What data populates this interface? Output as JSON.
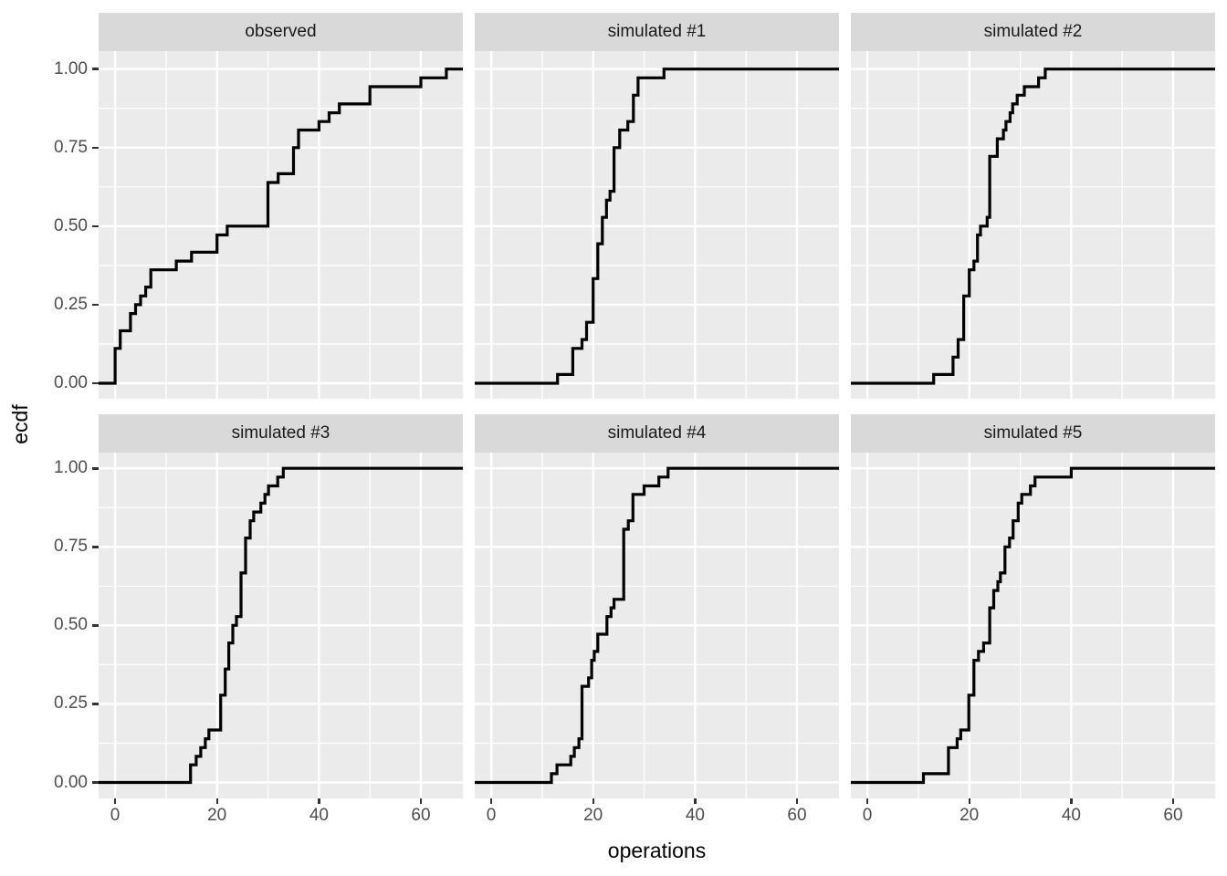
{
  "figure": {
    "background": "#ffffff",
    "colors": {
      "panel_background": "#ebebeb",
      "strip_background": "#d9d9d9",
      "grid_major": "#ffffff",
      "grid_minor": "#ffffff",
      "step_line": "#000000",
      "tick_mark": "#333333",
      "tick_text": "#4d4d4d",
      "axis_title_text": "#000000",
      "strip_text": "#1a1a1a"
    }
  },
  "chart_data": {
    "type": "line",
    "subtype": "ecdf-step-faceted",
    "title": "",
    "xlabel": "operations",
    "ylabel": "ecdf",
    "grid": "on",
    "legend": "none",
    "x_domain": [
      -3.25,
      68.25
    ],
    "y_domain": [
      -0.05,
      1.05
    ],
    "x_ticks": [
      {
        "v": 0,
        "label": "0"
      },
      {
        "v": 20,
        "label": "20"
      },
      {
        "v": 40,
        "label": "40"
      },
      {
        "v": 60,
        "label": "60"
      }
    ],
    "x_minor_ticks": [
      10,
      30,
      50
    ],
    "y_ticks": [
      {
        "v": 0.0,
        "label": "0.00"
      },
      {
        "v": 0.25,
        "label": "0.25"
      },
      {
        "v": 0.5,
        "label": "0.50"
      },
      {
        "v": 0.75,
        "label": "0.75"
      },
      {
        "v": 1.0,
        "label": "1.00"
      }
    ],
    "y_minor_ticks": [
      0.125,
      0.375,
      0.625,
      0.875
    ],
    "panels": [
      {
        "title": "observed",
        "steps": [
          [
            0,
            0.111
          ],
          [
            1,
            0.167
          ],
          [
            3,
            0.222
          ],
          [
            4,
            0.25
          ],
          [
            5,
            0.278
          ],
          [
            6,
            0.306
          ],
          [
            7,
            0.361
          ],
          [
            12,
            0.389
          ],
          [
            15,
            0.417
          ],
          [
            20,
            0.472
          ],
          [
            22,
            0.5
          ],
          [
            30,
            0.639
          ],
          [
            32,
            0.667
          ],
          [
            35,
            0.75
          ],
          [
            36,
            0.806
          ],
          [
            40,
            0.833
          ],
          [
            42,
            0.861
          ],
          [
            44,
            0.889
          ],
          [
            50,
            0.944
          ],
          [
            60,
            0.972
          ],
          [
            65,
            1.0
          ]
        ]
      },
      {
        "title": "simulated #1",
        "steps": [
          [
            13,
            0.028
          ],
          [
            16,
            0.111
          ],
          [
            17.8,
            0.139
          ],
          [
            18.7,
            0.194
          ],
          [
            20,
            0.333
          ],
          [
            20.9,
            0.444
          ],
          [
            21.8,
            0.528
          ],
          [
            22.6,
            0.583
          ],
          [
            23.3,
            0.611
          ],
          [
            24.1,
            0.75
          ],
          [
            25.2,
            0.806
          ],
          [
            26.8,
            0.833
          ],
          [
            27.9,
            0.917
          ],
          [
            28.8,
            0.972
          ],
          [
            33.9,
            1.0
          ]
        ]
      },
      {
        "title": "simulated #2",
        "steps": [
          [
            13,
            0.028
          ],
          [
            16.8,
            0.083
          ],
          [
            17.8,
            0.139
          ],
          [
            18.9,
            0.278
          ],
          [
            20,
            0.361
          ],
          [
            20.9,
            0.389
          ],
          [
            21.6,
            0.472
          ],
          [
            22.2,
            0.5
          ],
          [
            23.5,
            0.528
          ],
          [
            24,
            0.722
          ],
          [
            25.5,
            0.778
          ],
          [
            26.7,
            0.806
          ],
          [
            27.2,
            0.833
          ],
          [
            28,
            0.861
          ],
          [
            28.5,
            0.889
          ],
          [
            29.4,
            0.917
          ],
          [
            30.8,
            0.944
          ],
          [
            33.6,
            0.972
          ],
          [
            34.9,
            1.0
          ]
        ]
      },
      {
        "title": "simulated #3",
        "steps": [
          [
            14.8,
            0.056
          ],
          [
            15.9,
            0.083
          ],
          [
            16.8,
            0.111
          ],
          [
            17.7,
            0.139
          ],
          [
            18.4,
            0.167
          ],
          [
            20.7,
            0.278
          ],
          [
            21.6,
            0.361
          ],
          [
            22.3,
            0.444
          ],
          [
            23.1,
            0.5
          ],
          [
            23.8,
            0.528
          ],
          [
            24.7,
            0.667
          ],
          [
            25.6,
            0.778
          ],
          [
            26.5,
            0.833
          ],
          [
            27.2,
            0.861
          ],
          [
            28.6,
            0.889
          ],
          [
            29.4,
            0.917
          ],
          [
            30.1,
            0.944
          ],
          [
            31.9,
            0.972
          ],
          [
            33,
            1.0
          ]
        ]
      },
      {
        "title": "simulated #4",
        "steps": [
          [
            11.8,
            0.028
          ],
          [
            12.9,
            0.056
          ],
          [
            15.6,
            0.083
          ],
          [
            16.3,
            0.111
          ],
          [
            17.2,
            0.139
          ],
          [
            17.8,
            0.306
          ],
          [
            19.1,
            0.333
          ],
          [
            19.7,
            0.389
          ],
          [
            20.2,
            0.417
          ],
          [
            20.9,
            0.472
          ],
          [
            22.7,
            0.528
          ],
          [
            23.5,
            0.556
          ],
          [
            24.1,
            0.583
          ],
          [
            26,
            0.806
          ],
          [
            26.9,
            0.833
          ],
          [
            27.8,
            0.917
          ],
          [
            30,
            0.944
          ],
          [
            32.9,
            0.972
          ],
          [
            34.7,
            1.0
          ]
        ]
      },
      {
        "title": "simulated #5",
        "steps": [
          [
            11,
            0.028
          ],
          [
            15.9,
            0.111
          ],
          [
            17.6,
            0.139
          ],
          [
            18.3,
            0.167
          ],
          [
            19.9,
            0.278
          ],
          [
            20.9,
            0.389
          ],
          [
            21.8,
            0.417
          ],
          [
            22.8,
            0.444
          ],
          [
            24,
            0.556
          ],
          [
            24.8,
            0.611
          ],
          [
            25.6,
            0.639
          ],
          [
            26.1,
            0.667
          ],
          [
            27,
            0.75
          ],
          [
            27.9,
            0.778
          ],
          [
            28.6,
            0.833
          ],
          [
            29.6,
            0.889
          ],
          [
            30.3,
            0.917
          ],
          [
            32,
            0.944
          ],
          [
            32.9,
            0.972
          ],
          [
            40,
            1.0
          ]
        ]
      }
    ]
  }
}
